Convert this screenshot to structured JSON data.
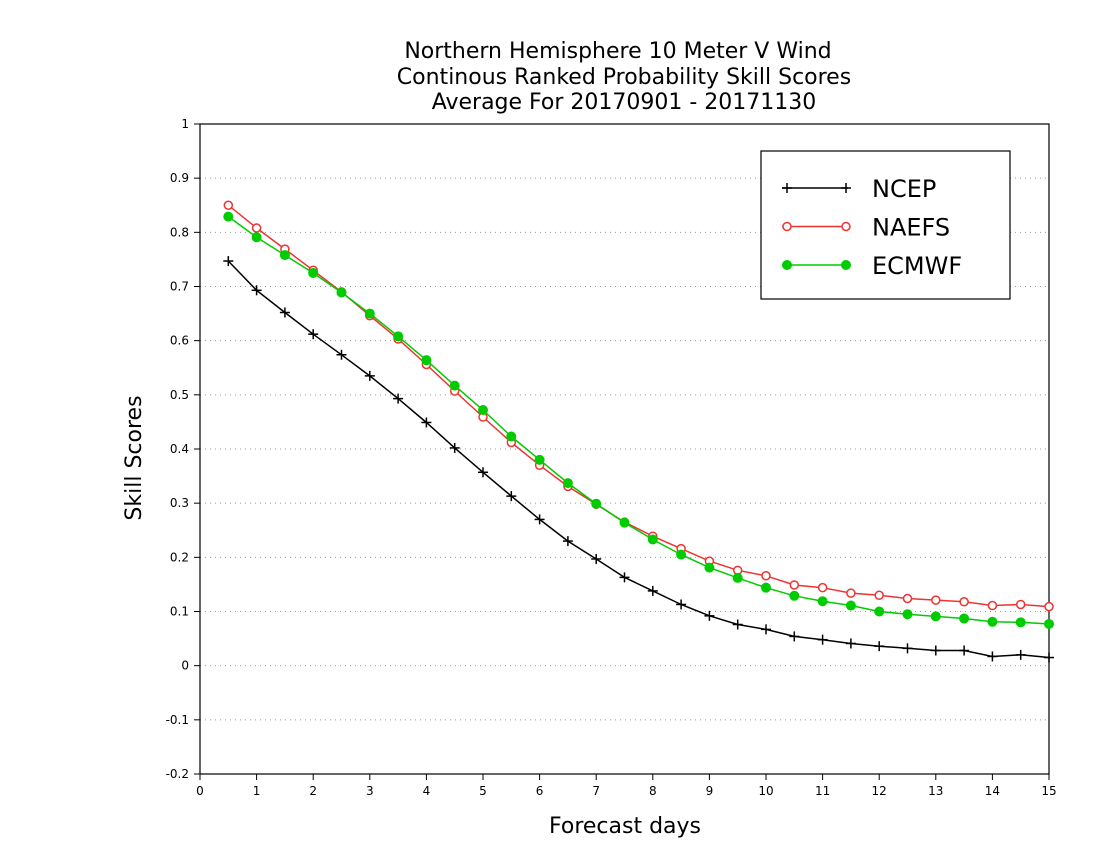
{
  "chart_data": {
    "type": "line",
    "title": [
      "Northern Hemisphere 10 Meter V Wind",
      "Continous Ranked Probability Skill Scores",
      "Average For 20170901 - 20171130"
    ],
    "xlabel": "Forecast days",
    "ylabel": "Skill Scores",
    "xlim": [
      0,
      15
    ],
    "ylim": [
      -0.2,
      1
    ],
    "xticks": [
      0,
      1,
      2,
      3,
      4,
      5,
      6,
      7,
      8,
      9,
      10,
      11,
      12,
      13,
      14,
      15
    ],
    "yticks": [
      -0.2,
      -0.1,
      0,
      0.1,
      0.2,
      0.3,
      0.4,
      0.5,
      0.6,
      0.7,
      0.8,
      0.9,
      1
    ],
    "ytick_labels": [
      "-0.2",
      "-0.1",
      "0",
      "0.1",
      "0.2",
      "0.3",
      "0.4",
      "0.5",
      "0.6",
      "0.7",
      "0.8",
      "0.9",
      "1"
    ],
    "grid": "horizontal dotted",
    "legend_position": "top-right",
    "x": [
      0.5,
      1,
      1.5,
      2,
      2.5,
      3,
      3.5,
      4,
      4.5,
      5,
      5.5,
      6,
      6.5,
      7,
      7.5,
      8,
      8.5,
      9,
      9.5,
      10,
      10.5,
      11,
      11.5,
      12,
      12.5,
      13,
      13.5,
      14,
      14.5,
      15
    ],
    "series": [
      {
        "name": "NCEP",
        "color": "#000000",
        "marker": "plus",
        "values": [
          0.747,
          0.693,
          0.652,
          0.612,
          0.574,
          0.535,
          0.493,
          0.449,
          0.402,
          0.357,
          0.313,
          0.27,
          0.23,
          0.197,
          0.163,
          0.138,
          0.113,
          0.092,
          0.076,
          0.067,
          0.054,
          0.048,
          0.041,
          0.036,
          0.032,
          0.028,
          0.028,
          0.017,
          0.02,
          0.015
        ]
      },
      {
        "name": "NAEFS",
        "color": "#ee3333",
        "marker": "open-circle",
        "values": [
          0.85,
          0.808,
          0.769,
          0.73,
          0.69,
          0.646,
          0.603,
          0.556,
          0.507,
          0.459,
          0.412,
          0.37,
          0.331,
          0.298,
          0.265,
          0.239,
          0.216,
          0.193,
          0.176,
          0.166,
          0.149,
          0.144,
          0.134,
          0.13,
          0.124,
          0.121,
          0.118,
          0.111,
          0.113,
          0.109
        ]
      },
      {
        "name": "ECMWF",
        "color": "#00cc00",
        "marker": "filled-circle",
        "values": [
          0.829,
          0.791,
          0.758,
          0.725,
          0.689,
          0.65,
          0.608,
          0.564,
          0.517,
          0.472,
          0.423,
          0.38,
          0.337,
          0.299,
          0.264,
          0.233,
          0.205,
          0.181,
          0.162,
          0.144,
          0.129,
          0.119,
          0.111,
          0.1,
          0.095,
          0.091,
          0.087,
          0.081,
          0.08,
          0.077
        ]
      }
    ]
  }
}
